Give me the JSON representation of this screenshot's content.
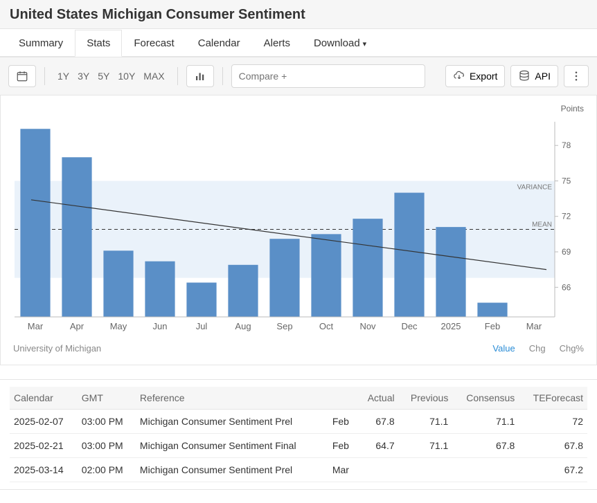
{
  "title": "United States Michigan Consumer Sentiment",
  "tabs": {
    "items": [
      "Summary",
      "Stats",
      "Forecast",
      "Calendar",
      "Alerts",
      "Download"
    ],
    "active": "Stats",
    "hasDropdown": [
      "Download"
    ]
  },
  "toolbar": {
    "ranges": [
      "1Y",
      "3Y",
      "5Y",
      "10Y",
      "MAX"
    ],
    "compare_placeholder": "Compare +",
    "export_label": "Export",
    "api_label": "API"
  },
  "chart": {
    "unit_label": "Points",
    "source": "University of Michigan",
    "legend": {
      "value": "Value",
      "chg": "Chg",
      "chgp": "Chg%"
    },
    "variance_label": "VARIANCE",
    "mean_label": "MEAN",
    "y_axis": {
      "min": 63.5,
      "max": 80,
      "ticks": [
        66,
        69,
        72,
        75,
        78
      ]
    },
    "x_labels": [
      "Mar",
      "Apr",
      "May",
      "Jun",
      "Jul",
      "Aug",
      "Sep",
      "Oct",
      "Nov",
      "Dec",
      "2025",
      "Feb",
      "Mar"
    ],
    "bars": [
      79.4,
      77.0,
      69.1,
      68.2,
      66.4,
      67.9,
      70.1,
      70.5,
      71.8,
      74.0,
      71.1,
      64.7,
      null
    ],
    "trend": {
      "start": 73.4,
      "end": 67.5
    },
    "mean": 70.9,
    "variance_band": {
      "low": 66.8,
      "high": 75.0
    },
    "bar_color": "#5a8fc7",
    "band_color": "#eaf2fa",
    "axis_color": "#888888",
    "text_color": "#666666"
  },
  "table": {
    "headers": [
      "Calendar",
      "GMT",
      "Reference",
      "",
      "Actual",
      "Previous",
      "Consensus",
      "TEForecast"
    ],
    "rows": [
      [
        "2025-02-07",
        "03:00 PM",
        "Michigan Consumer Sentiment Prel",
        "Feb",
        "67.8",
        "71.1",
        "71.1",
        "72"
      ],
      [
        "2025-02-21",
        "03:00 PM",
        "Michigan Consumer Sentiment Final",
        "Feb",
        "64.7",
        "71.1",
        "67.8",
        "67.8"
      ],
      [
        "2025-03-14",
        "02:00 PM",
        "Michigan Consumer Sentiment Prel",
        "Mar",
        "",
        "",
        "",
        "67.2"
      ]
    ]
  }
}
